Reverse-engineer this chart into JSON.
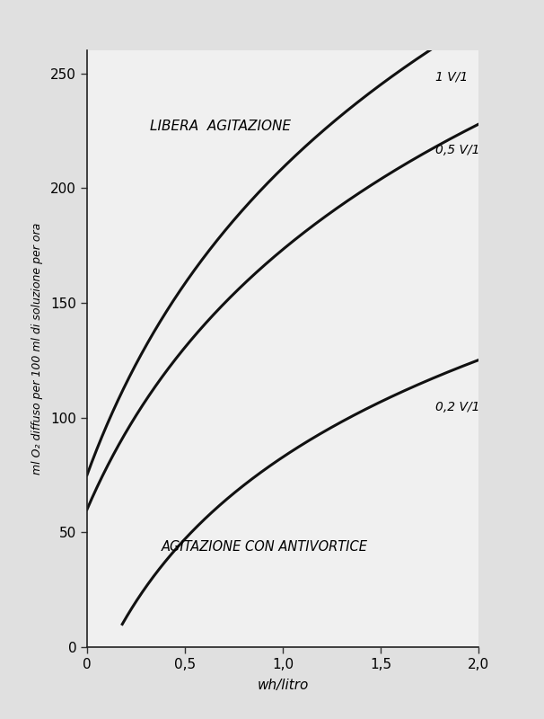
{
  "xlabel": "wh/litro",
  "ylabel": "ml O₂ diffuso per 100 ml di soluzione per ora",
  "xlim": [
    0,
    2.0
  ],
  "ylim": [
    0,
    260
  ],
  "xticks": [
    0,
    0.5,
    1.0,
    1.5,
    2.0
  ],
  "xtick_labels": [
    "0",
    "0,5",
    "1,0",
    "1,5",
    "2,0"
  ],
  "yticks": [
    0,
    50,
    100,
    150,
    200,
    250
  ],
  "fig_bg_color": "#e0e0e0",
  "plot_bg_color": "#f0f0f0",
  "curve_color": "#111111",
  "annotation_libera": "LIBERA  AGITAZIONE",
  "annotation_antivortice": "AGITAZIONE CON ANTIVORTICE",
  "label_1v1": "1 V/1",
  "label_05v1": "0,5 V/1",
  "label_02v1": "0,2 V/1",
  "curve_1v1": {
    "a": 75,
    "b": 130,
    "k": 1.8
  },
  "curve_05v1": {
    "a": 60,
    "b": 110,
    "k": 1.8
  },
  "curve_02v1": {
    "x_start": 0.18,
    "a": 10,
    "b": 75,
    "k": 2.0
  }
}
